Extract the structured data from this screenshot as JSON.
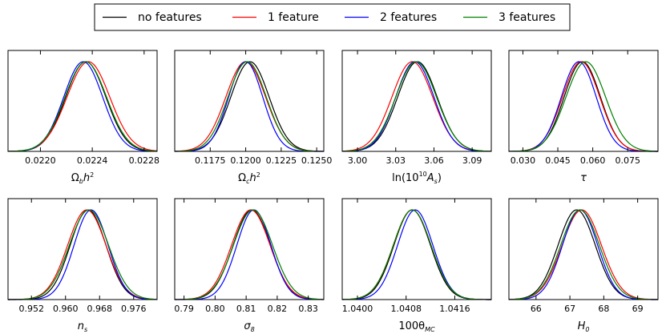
{
  "legend": {
    "entries": [
      {
        "label": "no features",
        "color": "#000000"
      },
      {
        "label": "1 feature",
        "color": "#ff0000"
      },
      {
        "label": "2 features",
        "color": "#0000ff"
      },
      {
        "label": "3 features",
        "color": "#008000"
      }
    ],
    "placement": "top-center"
  },
  "chart_data": [
    {
      "type": "line",
      "id": "omega_b",
      "xlabel_main": "Ω",
      "xlabel_sub": "b",
      "xlabel_tail": "h",
      "xlabel_sup": "2",
      "xlim": [
        0.02175,
        0.0229
      ],
      "ticks": [
        0.022,
        0.0224,
        0.0228
      ],
      "tick_labels": [
        "0.0220",
        "0.0224",
        "0.0228"
      ],
      "series": [
        {
          "name": "no features",
          "mean": 0.02235,
          "sigma": 0.000155
        },
        {
          "name": "1 feature",
          "mean": 0.02237,
          "sigma": 0.000165
        },
        {
          "name": "2 features",
          "mean": 0.02233,
          "sigma": 0.00015
        },
        {
          "name": "3 features",
          "mean": 0.02235,
          "sigma": 0.00016
        }
      ]
    },
    {
      "type": "line",
      "id": "omega_c",
      "xlabel_main": "Ω",
      "xlabel_sub": "c",
      "xlabel_tail": "h",
      "xlabel_sup": "2",
      "xlim": [
        0.115,
        0.1255
      ],
      "ticks": [
        0.1175,
        0.12,
        0.1225,
        0.125
      ],
      "tick_labels": [
        "0.1175",
        "0.1200",
        "0.1225",
        "0.1250"
      ],
      "series": [
        {
          "name": "no features",
          "mean": 0.1203,
          "sigma": 0.00135
        },
        {
          "name": "1 feature",
          "mean": 0.12,
          "sigma": 0.0014
        },
        {
          "name": "2 features",
          "mean": 0.12,
          "sigma": 0.0012
        },
        {
          "name": "3 features",
          "mean": 0.1201,
          "sigma": 0.00135
        }
      ]
    },
    {
      "type": "line",
      "id": "ln_as",
      "xlabel_text": "ln(10",
      "xlabel_sup": "10",
      "xlabel_mid": "A",
      "xlabel_sub": "s",
      "xlabel_close": ")",
      "xlim": [
        2.988,
        3.105
      ],
      "ticks": [
        3.0,
        3.03,
        3.06,
        3.09
      ],
      "tick_labels": [
        "3.00",
        "3.03",
        "3.06",
        "3.09"
      ],
      "series": [
        {
          "name": "no features",
          "mean": 3.047,
          "sigma": 0.0155
        },
        {
          "name": "1 feature",
          "mean": 3.043,
          "sigma": 0.016
        },
        {
          "name": "2 features",
          "mean": 3.045,
          "sigma": 0.015
        },
        {
          "name": "3 features",
          "mean": 3.046,
          "sigma": 0.016
        }
      ]
    },
    {
      "type": "line",
      "id": "tau",
      "xlabel_main": "τ",
      "xlim": [
        0.024,
        0.088
      ],
      "ticks": [
        0.03,
        0.045,
        0.06,
        0.075
      ],
      "tick_labels": [
        "0.030",
        "0.045",
        "0.060",
        "0.075"
      ],
      "series": [
        {
          "name": "no features",
          "mean": 0.0555,
          "sigma": 0.0078
        },
        {
          "name": "1 feature",
          "mean": 0.055,
          "sigma": 0.008
        },
        {
          "name": "2 features",
          "mean": 0.054,
          "sigma": 0.0075
        },
        {
          "name": "3 features",
          "mean": 0.057,
          "sigma": 0.0085
        }
      ]
    },
    {
      "type": "line",
      "id": "ns",
      "xlabel_main": "n",
      "xlabel_sub": "s",
      "xlim": [
        0.9465,
        0.9815
      ],
      "ticks": [
        0.952,
        0.96,
        0.968,
        0.976
      ],
      "tick_labels": [
        "0.952",
        "0.960",
        "0.968",
        "0.976"
      ],
      "series": [
        {
          "name": "no features",
          "mean": 0.9653,
          "sigma": 0.0042
        },
        {
          "name": "1 feature",
          "mean": 0.965,
          "sigma": 0.0045
        },
        {
          "name": "2 features",
          "mean": 0.966,
          "sigma": 0.004
        },
        {
          "name": "3 features",
          "mean": 0.9655,
          "sigma": 0.0046
        }
      ]
    },
    {
      "type": "line",
      "id": "sigma8",
      "xlabel_main": "σ",
      "xlabel_sub": "8",
      "xlim": [
        0.787,
        0.835
      ],
      "ticks": [
        0.79,
        0.8,
        0.81,
        0.82,
        0.83
      ],
      "tick_labels": [
        "0.79",
        "0.80",
        "0.81",
        "0.82",
        "0.83"
      ],
      "series": [
        {
          "name": "no features",
          "mean": 0.8118,
          "sigma": 0.006
        },
        {
          "name": "1 feature",
          "mean": 0.8115,
          "sigma": 0.0062
        },
        {
          "name": "2 features",
          "mean": 0.8125,
          "sigma": 0.0055
        },
        {
          "name": "3 features",
          "mean": 0.8122,
          "sigma": 0.0063
        }
      ]
    },
    {
      "type": "line",
      "id": "theta_mc",
      "xlabel_main": "100θ",
      "xlabel_sub": "MC",
      "xlim": [
        1.03975,
        1.0422
      ],
      "ticks": [
        1.04,
        1.0408,
        1.0416
      ],
      "tick_labels": [
        "1.0400",
        "1.0408",
        "1.0416"
      ],
      "series": [
        {
          "name": "no features",
          "mean": 1.0409,
          "sigma": 0.0003
        },
        {
          "name": "1 feature",
          "mean": 1.0409,
          "sigma": 0.00031
        },
        {
          "name": "2 features",
          "mean": 1.04095,
          "sigma": 0.00029
        },
        {
          "name": "3 features",
          "mean": 1.0409,
          "sigma": 0.00031
        }
      ]
    },
    {
      "type": "line",
      "id": "h0",
      "xlabel_main": "H",
      "xlabel_sub": "0",
      "xlim": [
        65.2,
        69.6
      ],
      "ticks": [
        66,
        67,
        68,
        69
      ],
      "tick_labels": [
        "66",
        "67",
        "68",
        "69"
      ],
      "series": [
        {
          "name": "no features",
          "mean": 67.2,
          "sigma": 0.55
        },
        {
          "name": "1 feature",
          "mean": 67.35,
          "sigma": 0.58
        },
        {
          "name": "2 features",
          "mean": 67.3,
          "sigma": 0.52
        },
        {
          "name": "3 features",
          "mean": 67.3,
          "sigma": 0.57
        }
      ]
    }
  ]
}
